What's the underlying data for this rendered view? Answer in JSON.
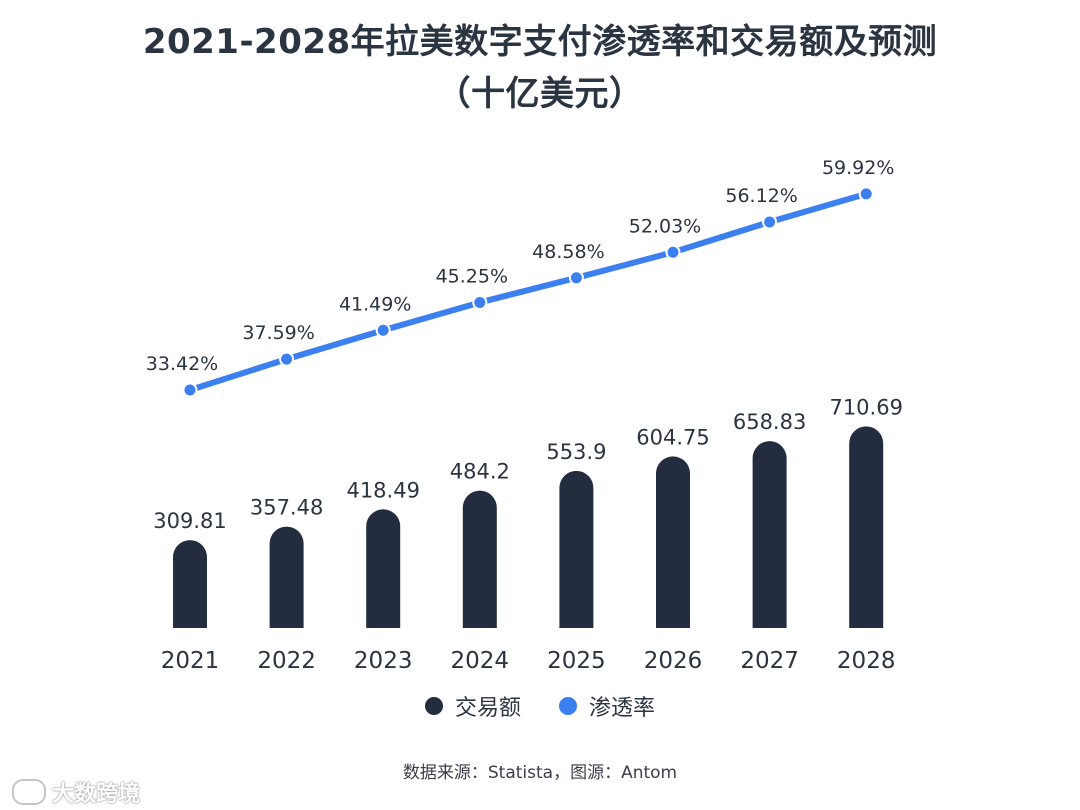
{
  "title_line1": "2021-2028年拉美数字支付渗透率和交易额及预测",
  "title_line2": "（十亿美元）",
  "source": "数据来源：Statista，图源：Antom",
  "watermark": "大数跨境",
  "colors": {
    "bar": "#232d3f",
    "line": "#3b7ff0",
    "text": "#2b3441"
  },
  "chart_data": {
    "type": "bar+line",
    "categories": [
      "2021",
      "2022",
      "2023",
      "2024",
      "2025",
      "2026",
      "2027",
      "2028"
    ],
    "series": [
      {
        "name": "交易额",
        "type": "bar",
        "values": [
          309.81,
          357.48,
          418.49,
          484.2,
          553.9,
          604.75,
          658.83,
          710.69
        ],
        "labels": [
          "309.81",
          "357.48",
          "418.49",
          "484.2",
          "553.9",
          "604.75",
          "658.83",
          "710.69"
        ]
      },
      {
        "name": "渗透率",
        "type": "line",
        "unit": "%",
        "values": [
          33.42,
          37.59,
          41.49,
          45.25,
          48.58,
          52.03,
          56.12,
          59.92
        ],
        "labels": [
          "33.42%",
          "37.59%",
          "41.49%",
          "45.25%",
          "48.58%",
          "52.03%",
          "56.12%",
          "59.92%"
        ]
      }
    ],
    "legend_position": "bottom-center",
    "grid": false
  }
}
